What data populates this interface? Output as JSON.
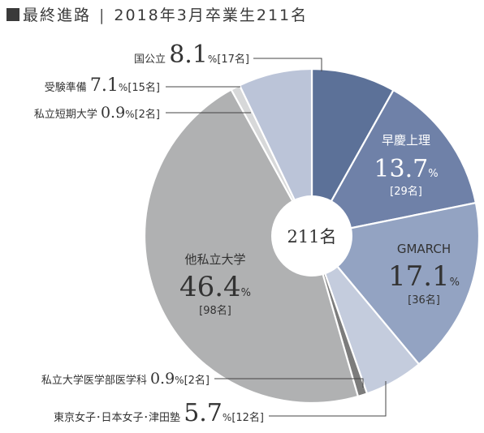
{
  "title": {
    "main": "最終進路",
    "sub": "2018年3月卒業生211名"
  },
  "chart_data": {
    "type": "pie",
    "variant": "donut",
    "center_label": "211名",
    "slices": [
      {
        "label": "国公立",
        "percent": 8.1,
        "count": "[17名]",
        "color": "#5c7198",
        "label_style": "external"
      },
      {
        "label": "早慶上理",
        "percent": 13.7,
        "count": "[29名]",
        "color": "#6f81a8",
        "label_style": "internal"
      },
      {
        "label": "GMARCH",
        "percent": 17.1,
        "count": "[36名]",
        "color": "#93a3c2",
        "label_style": "internal"
      },
      {
        "label": "東京女子･日本女子･津田塾",
        "percent": 5.7,
        "count": "[12名]",
        "color": "#c4ccdd",
        "label_style": "external"
      },
      {
        "label": "私立大学医学部医学科",
        "percent": 0.9,
        "count": "[2名]",
        "color": "#7c7c7c",
        "label_style": "external"
      },
      {
        "label": "他私立大学",
        "percent": 46.4,
        "count": "[98名]",
        "color": "#b0b1b2",
        "label_style": "internal"
      },
      {
        "label": "私立短期大学",
        "percent": 0.9,
        "count": "[2名]",
        "color": "#d7d8d9",
        "label_style": "external"
      },
      {
        "label": "受験準備",
        "percent": 7.1,
        "count": "[15名]",
        "color": "#bbc4d8",
        "label_style": "external"
      }
    ],
    "percent_unit": "%"
  }
}
